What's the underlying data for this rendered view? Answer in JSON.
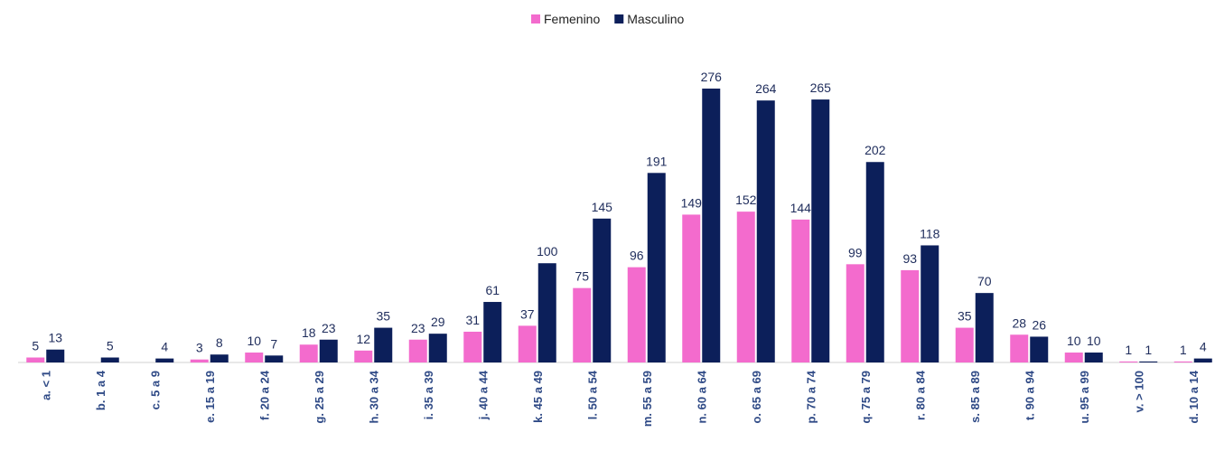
{
  "chart_data": {
    "type": "bar",
    "categories": [
      "a. < 1",
      "b. 1 a 4",
      "c. 5 a 9",
      "e. 15 a 19",
      "f. 20 a 24",
      "g. 25 a 29",
      "h. 30 a 34",
      "i. 35 a 39",
      "j. 40 a 44",
      "k. 45 a 49",
      "l. 50 a 54",
      "m. 55 a 59",
      "n. 60 a 64",
      "o. 65 a 69",
      "p. 70 a 74",
      "q. 75 a 79",
      "r. 80 a 84",
      "s. 85 a 89",
      "t. 90 a 94",
      "u. 95 a 99",
      "v. > 100",
      "d. 10 a 14"
    ],
    "series": [
      {
        "name": "Femenino",
        "color": "#f36bcd",
        "values": [
          5,
          null,
          null,
          3,
          10,
          18,
          12,
          23,
          31,
          37,
          75,
          96,
          149,
          152,
          144,
          99,
          93,
          35,
          28,
          10,
          1,
          1
        ]
      },
      {
        "name": "Masculino",
        "color": "#0c1f5a",
        "values": [
          13,
          5,
          4,
          8,
          7,
          23,
          35,
          29,
          61,
          100,
          145,
          191,
          276,
          264,
          265,
          202,
          118,
          70,
          26,
          10,
          1,
          4
        ]
      }
    ],
    "legend": "top"
  }
}
